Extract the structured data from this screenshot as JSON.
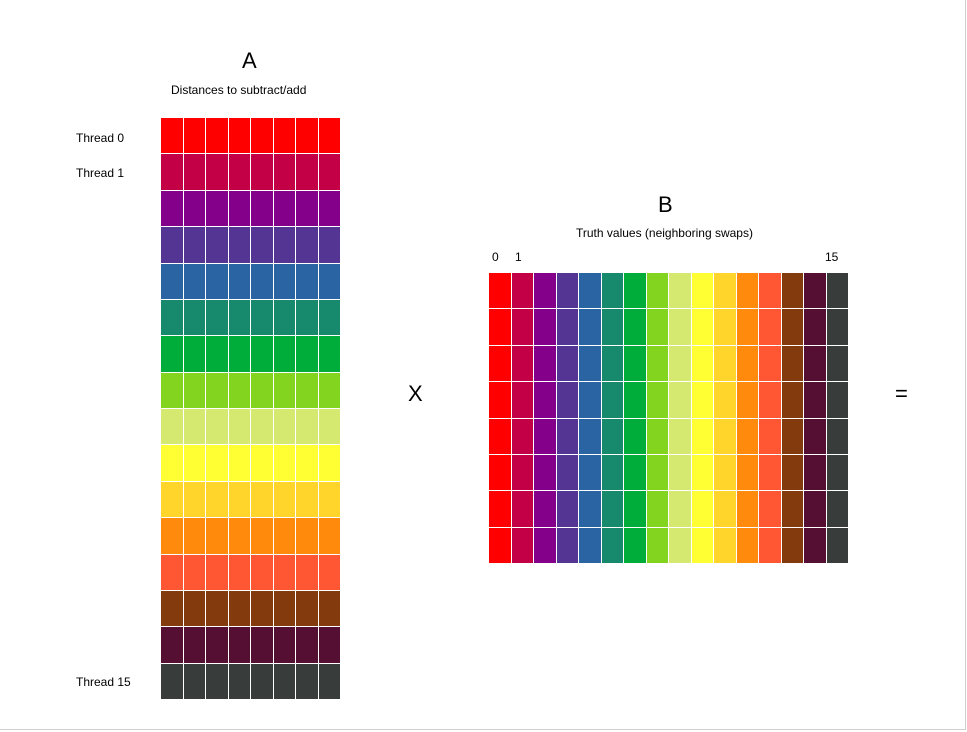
{
  "matrix_a": {
    "title": "A",
    "subtitle": "Distances to subtract/add",
    "row_labels": {
      "first": "Thread 0",
      "second": "Thread 1",
      "last": "Thread 15"
    },
    "rows": 16,
    "cols": 8
  },
  "operator_multiply": "X",
  "matrix_b": {
    "title": "B",
    "subtitle": "Truth values (neighboring swaps)",
    "col_labels": {
      "first": "0",
      "second": "1",
      "last": "15"
    },
    "rows": 8,
    "cols": 16
  },
  "operator_equals": "=",
  "palette": [
    "#ff0000",
    "#c30046",
    "#84008a",
    "#553594",
    "#2b64a2",
    "#178a6e",
    "#00ad3a",
    "#82d41e",
    "#d5e970",
    "#ffff33",
    "#ffd42b",
    "#ff8a0c",
    "#ff5633",
    "#833a0c",
    "#540f33",
    "#383d3c"
  ]
}
